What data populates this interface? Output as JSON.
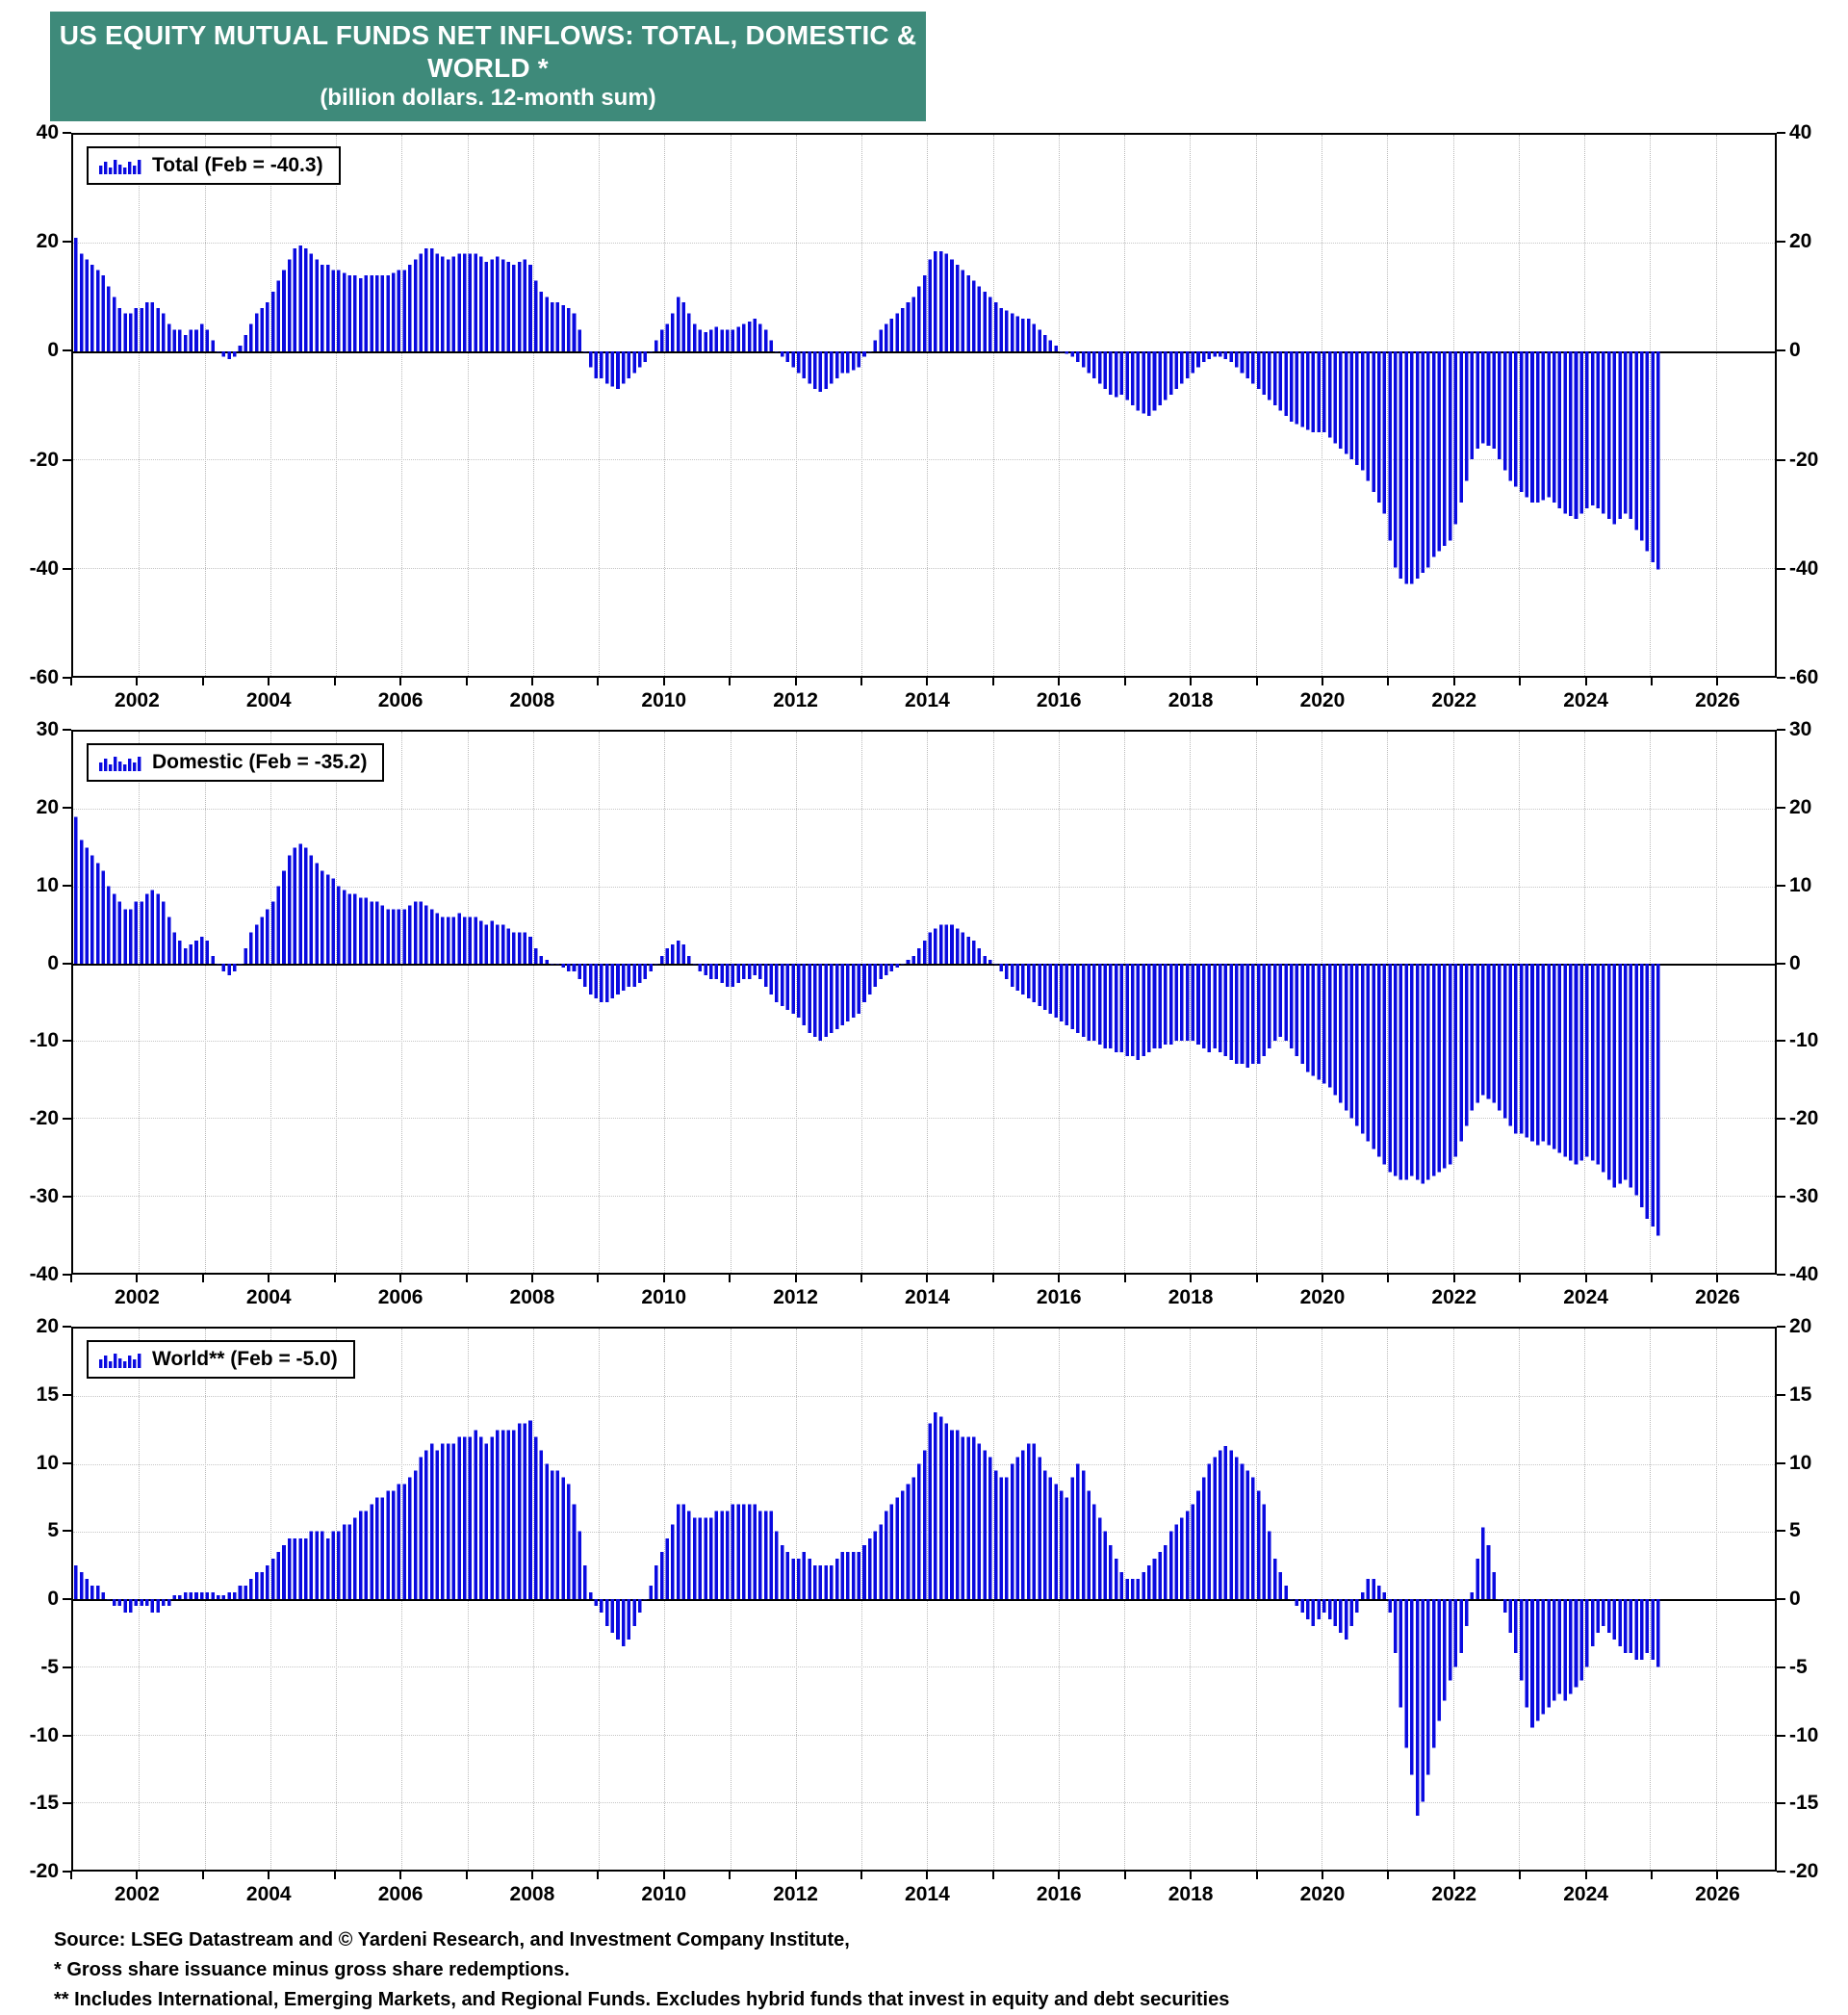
{
  "title": {
    "line1": "US EQUITY MUTUAL FUNDS NET INFLOWS: TOTAL, DOMESTIC & WORLD *",
    "line2": "(billion dollars. 12-month sum)"
  },
  "colors": {
    "header_bg": "#3e8a7a",
    "header_text": "#ffffff",
    "bar": "#0a0ae0",
    "axis": "#000000",
    "grid": "#c6c6c6"
  },
  "x_axis": {
    "xlim": [
      2001.0,
      2026.9
    ],
    "ticks": [
      2002,
      2004,
      2006,
      2008,
      2010,
      2012,
      2014,
      2016,
      2018,
      2020,
      2022,
      2024,
      2026
    ]
  },
  "chart_data": [
    {
      "type": "bar",
      "name": "Total",
      "legend": "Total (Feb = -40.3)",
      "unit": "billion dollars, 12-month sum",
      "ylim": [
        -60,
        40
      ],
      "yticks": [
        40,
        20,
        0,
        -20,
        -40,
        -60
      ],
      "start_year": 2001,
      "start_month": 1,
      "frequency": "monthly",
      "values": [
        21,
        18,
        17,
        16,
        15,
        14,
        12,
        10,
        8,
        7,
        7,
        8,
        8,
        9,
        9,
        8,
        7,
        5,
        4,
        4,
        3,
        4,
        4,
        5,
        4,
        2,
        0,
        -1,
        -1.5,
        -1,
        1,
        3,
        5,
        7,
        8,
        9,
        11,
        13,
        15,
        17,
        19,
        19.5,
        19,
        18,
        17,
        16,
        16,
        15,
        15,
        14.5,
        14,
        14,
        13.5,
        14,
        14,
        14,
        14,
        14,
        14.5,
        15,
        15,
        16,
        17,
        18,
        19,
        19,
        18,
        17.5,
        17,
        17.5,
        18,
        18,
        18,
        18,
        17.5,
        16.5,
        17,
        17.5,
        17,
        16.5,
        16,
        16.5,
        17,
        16,
        13,
        11,
        10,
        9,
        9,
        8.5,
        8,
        7,
        4,
        0,
        -3,
        -5,
        -5,
        -6,
        -6.5,
        -7,
        -6,
        -5,
        -4,
        -3,
        -2,
        0,
        2,
        4,
        5,
        7,
        10,
        9,
        7,
        5,
        4,
        3.5,
        4,
        4.5,
        4,
        4,
        4,
        4.5,
        5,
        5.5,
        6,
        5,
        4,
        2,
        0,
        -1,
        -2,
        -3,
        -4,
        -5,
        -6,
        -7,
        -7.5,
        -7,
        -6,
        -5,
        -4,
        -4,
        -3.5,
        -3,
        -1,
        0,
        2,
        4,
        5,
        6,
        7,
        8,
        9,
        10,
        12,
        14,
        17,
        18.5,
        18.5,
        18,
        17,
        16,
        15,
        14,
        13,
        12,
        11,
        10,
        9,
        8,
        7.5,
        7,
        6.5,
        6,
        6,
        5,
        4,
        3,
        2,
        1,
        0,
        -0.5,
        -1,
        -2,
        -3,
        -4,
        -5,
        -6,
        -7,
        -8,
        -8.5,
        -8,
        -9,
        -10,
        -11,
        -11.5,
        -12,
        -11,
        -10,
        -9,
        -8,
        -7,
        -6,
        -5,
        -4,
        -3,
        -2,
        -1.5,
        -1,
        -1,
        -1.5,
        -2,
        -3,
        -4,
        -5,
        -6,
        -7,
        -8,
        -9,
        -10,
        -11,
        -12,
        -13,
        -13.5,
        -14,
        -14.5,
        -15,
        -15,
        -15,
        -16,
        -17,
        -18,
        -19,
        -20,
        -21,
        -22,
        -24,
        -26,
        -28,
        -30,
        -35,
        -40,
        -42,
        -43,
        -43,
        -42,
        -41,
        -40,
        -38,
        -37,
        -36,
        -35,
        -32,
        -28,
        -24,
        -20,
        -18,
        -17,
        -17.5,
        -18,
        -20,
        -22,
        -24,
        -25,
        -26,
        -27,
        -28,
        -28,
        -27.5,
        -27,
        -28,
        -29,
        -30,
        -30.5,
        -31,
        -30,
        -29,
        -28.5,
        -29,
        -30,
        -31,
        -32,
        -31,
        -30,
        -31,
        -33,
        -35,
        -37,
        -39,
        -40.3
      ]
    },
    {
      "type": "bar",
      "name": "Domestic",
      "legend": "Domestic (Feb = -35.2)",
      "unit": "billion dollars, 12-month sum",
      "ylim": [
        -40,
        30
      ],
      "yticks": [
        30,
        20,
        10,
        0,
        -10,
        -20,
        -30,
        -40
      ],
      "start_year": 2001,
      "start_month": 1,
      "frequency": "monthly",
      "values": [
        19,
        16,
        15,
        14,
        13,
        12,
        10,
        9,
        8,
        7,
        7,
        8,
        8,
        9,
        9.5,
        9,
        8,
        6,
        4,
        3,
        2,
        2.5,
        3,
        3.5,
        3,
        1,
        0,
        -1,
        -1.5,
        -1,
        0,
        2,
        4,
        5,
        6,
        7,
        8,
        10,
        12,
        14,
        15,
        15.5,
        15,
        14,
        13,
        12,
        11.5,
        11,
        10,
        9.5,
        9,
        9,
        8.5,
        8.5,
        8,
        8,
        7.5,
        7,
        7,
        7,
        7,
        7.5,
        8,
        8,
        7.5,
        7,
        6.5,
        6,
        6,
        6,
        6.5,
        6,
        6,
        6,
        5.5,
        5,
        5.5,
        5,
        5,
        4.5,
        4,
        4,
        4,
        3.5,
        2,
        1,
        0.5,
        0,
        0,
        -0.5,
        -1,
        -1,
        -2,
        -3,
        -4,
        -4.5,
        -5,
        -5,
        -4.5,
        -4,
        -3.5,
        -3,
        -3,
        -2.5,
        -2,
        -1,
        0,
        1,
        2,
        2.5,
        3,
        2.5,
        1,
        0,
        -1,
        -1.5,
        -2,
        -2,
        -2.5,
        -3,
        -3,
        -2.5,
        -2,
        -2,
        -1.5,
        -2,
        -3,
        -4,
        -5,
        -5.5,
        -6,
        -6.5,
        -7,
        -8,
        -9,
        -9.5,
        -10,
        -9.5,
        -9,
        -8.5,
        -8,
        -7.5,
        -7,
        -6.5,
        -5,
        -4,
        -3,
        -2,
        -1.5,
        -1,
        -0.5,
        0,
        0.5,
        1,
        2,
        3,
        4,
        4.5,
        5,
        5,
        5,
        4.5,
        4,
        3.5,
        3,
        2,
        1,
        0.5,
        0,
        -1,
        -2,
        -3,
        -3.5,
        -4,
        -4.5,
        -5,
        -5.5,
        -6,
        -6.5,
        -7,
        -7.5,
        -8,
        -8.5,
        -9,
        -9.5,
        -10,
        -10,
        -10.5,
        -11,
        -11,
        -11.5,
        -11.5,
        -12,
        -12,
        -12.5,
        -12,
        -11.5,
        -11,
        -11,
        -10.5,
        -10.5,
        -10,
        -10,
        -10,
        -10,
        -10.5,
        -11,
        -11.5,
        -11,
        -11.5,
        -12,
        -12.5,
        -13,
        -13,
        -13.5,
        -13,
        -13,
        -12,
        -11,
        -10,
        -9.5,
        -10,
        -11,
        -12,
        -13,
        -14,
        -14.5,
        -15,
        -15.5,
        -16,
        -17,
        -18,
        -19,
        -20,
        -21,
        -22,
        -23,
        -24,
        -25,
        -26,
        -27,
        -27.5,
        -28,
        -28,
        -27.5,
        -28,
        -28.5,
        -28,
        -27.5,
        -27,
        -26.5,
        -26,
        -25,
        -23,
        -21,
        -19,
        -18,
        -17,
        -17.5,
        -18,
        -19,
        -20,
        -21,
        -22,
        -22,
        -22.5,
        -23,
        -23.5,
        -23,
        -23.5,
        -24,
        -24.5,
        -25,
        -25.5,
        -26,
        -25.5,
        -25,
        -25.5,
        -26,
        -27,
        -28,
        -29,
        -28.5,
        -28,
        -29,
        -30,
        -31.5,
        -33,
        -34,
        -35.2
      ]
    },
    {
      "type": "bar",
      "name": "World",
      "legend": "World** (Feb = -5.0)",
      "unit": "billion dollars, 12-month sum",
      "ylim": [
        -20,
        20
      ],
      "yticks": [
        20,
        15,
        10,
        5,
        0,
        -5,
        -10,
        -15,
        -20
      ],
      "start_year": 2001,
      "start_month": 1,
      "frequency": "monthly",
      "values": [
        2.5,
        2,
        1.5,
        1,
        1,
        0.5,
        0,
        -0.5,
        -0.5,
        -1,
        -1,
        -0.5,
        -0.5,
        -0.5,
        -1,
        -1,
        -0.5,
        -0.5,
        0.3,
        0.3,
        0.5,
        0.5,
        0.5,
        0.5,
        0.5,
        0.5,
        0.3,
        0.3,
        0.5,
        0.5,
        1,
        1,
        1.5,
        2,
        2,
        2.5,
        3,
        3.5,
        4,
        4.5,
        4.5,
        4.5,
        4.5,
        5,
        5,
        5,
        4.5,
        5,
        5,
        5.5,
        5.5,
        6,
        6.5,
        6.5,
        7,
        7.5,
        7.5,
        8,
        8,
        8.5,
        8.5,
        9,
        9.5,
        10.5,
        11,
        11.5,
        11,
        11.5,
        11.5,
        11.5,
        12,
        12,
        12,
        12.5,
        12,
        11.5,
        12,
        12.5,
        12.5,
        12.5,
        12.5,
        13,
        13,
        13.2,
        12,
        11,
        10,
        9.5,
        9.5,
        9,
        8.5,
        7,
        5,
        2.5,
        0.5,
        -0.5,
        -1,
        -2,
        -2.5,
        -3,
        -3.5,
        -3,
        -2,
        -1,
        0,
        1,
        2.5,
        3.5,
        4.5,
        5.5,
        7,
        7,
        6.5,
        6,
        6,
        6,
        6,
        6.5,
        6.5,
        6.5,
        7,
        7,
        7,
        7,
        7,
        6.5,
        6.5,
        6.5,
        5,
        4,
        3.5,
        3,
        3,
        3.5,
        3,
        2.5,
        2.5,
        2.5,
        2.5,
        3,
        3.5,
        3.5,
        3.5,
        3.5,
        4,
        4.5,
        5,
        5.5,
        6.5,
        7,
        7.5,
        8,
        8.5,
        9,
        10,
        11,
        13,
        13.8,
        13.5,
        13,
        12.5,
        12.5,
        12,
        12,
        12,
        11.5,
        11,
        10.5,
        9.5,
        9,
        9,
        10,
        10.5,
        11,
        11.5,
        11.5,
        10.5,
        9.5,
        9,
        8.5,
        8,
        7.5,
        9,
        10,
        9.5,
        8,
        7,
        6,
        5,
        4,
        3,
        2,
        1.5,
        1.5,
        1.5,
        2,
        2.5,
        3,
        3.5,
        4,
        5,
        5.5,
        6,
        6.5,
        7,
        8,
        9,
        10,
        10.5,
        11,
        11.3,
        11,
        10.5,
        10,
        9.5,
        9,
        8,
        7,
        5,
        3,
        2,
        1,
        0,
        -0.5,
        -1,
        -1.5,
        -2,
        -1.5,
        -1,
        -1.5,
        -2,
        -2.5,
        -3,
        -2,
        -1,
        0.5,
        1.5,
        1.5,
        1,
        0.5,
        -1,
        -4,
        -8,
        -11,
        -13,
        -16,
        -15,
        -13,
        -11,
        -9,
        -7.5,
        -6,
        -5,
        -4,
        -2,
        0.5,
        3,
        5.3,
        4,
        2,
        0,
        -1,
        -2.5,
        -4,
        -6,
        -8,
        -9.5,
        -9,
        -8.5,
        -8,
        -7.5,
        -7,
        -7.5,
        -7,
        -6.5,
        -6,
        -5,
        -3.5,
        -2.5,
        -2,
        -2.5,
        -3,
        -3.5,
        -4,
        -4,
        -4.5,
        -4.5,
        -4,
        -4.5,
        -5.0
      ]
    }
  ],
  "footer": {
    "source": "Source: LSEG Datastream and © Yardeni Research, and Investment Company Institute,",
    "note1": "* Gross share issuance minus gross share redemptions.",
    "note2": "** Includes International, Emerging Markets, and Regional Funds. Excludes hybrid funds that invest in equity and debt securities"
  }
}
